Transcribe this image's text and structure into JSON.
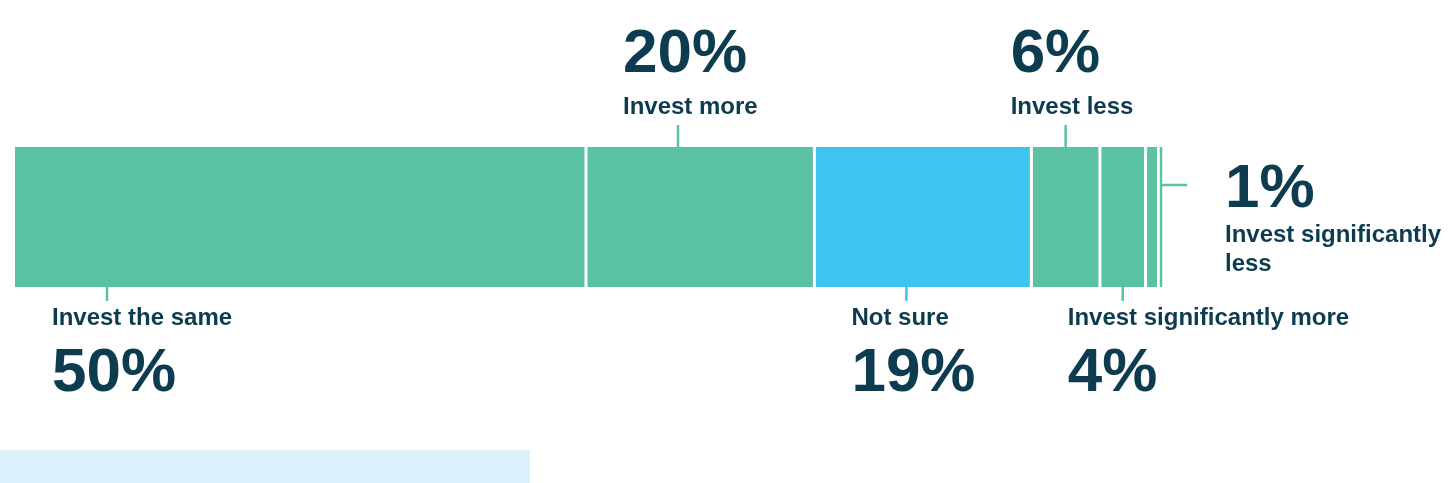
{
  "chart_data": {
    "type": "bar",
    "orientation": "horizontal",
    "stacked": true,
    "categories": [
      null
    ],
    "xlim": [
      0,
      100
    ],
    "tick_labels": false,
    "legend": false,
    "series": [
      {
        "name": "Invest the same",
        "color": "#5bc1a3",
        "values": [
          50
        ],
        "value_labels": [
          "50%"
        ]
      },
      {
        "name": "Invest more",
        "color": "#5bc1a3",
        "values": [
          20
        ],
        "value_labels": [
          "20%"
        ]
      },
      {
        "name": "Not sure",
        "color": "#3ec5ef",
        "values": [
          19
        ],
        "value_labels": [
          "19%"
        ]
      },
      {
        "name": "Invest less",
        "color": "#5bc1a3",
        "values": [
          6
        ],
        "value_labels": [
          "6%"
        ]
      },
      {
        "name": "Invest significantly more",
        "color": "#5bc1a3",
        "values": [
          4
        ],
        "value_labels": [
          "4%"
        ]
      },
      {
        "name": "Invest significantly less",
        "color": "#5bc1a3",
        "values": [
          1
        ],
        "value_labels": [
          "1%"
        ]
      }
    ]
  }
}
